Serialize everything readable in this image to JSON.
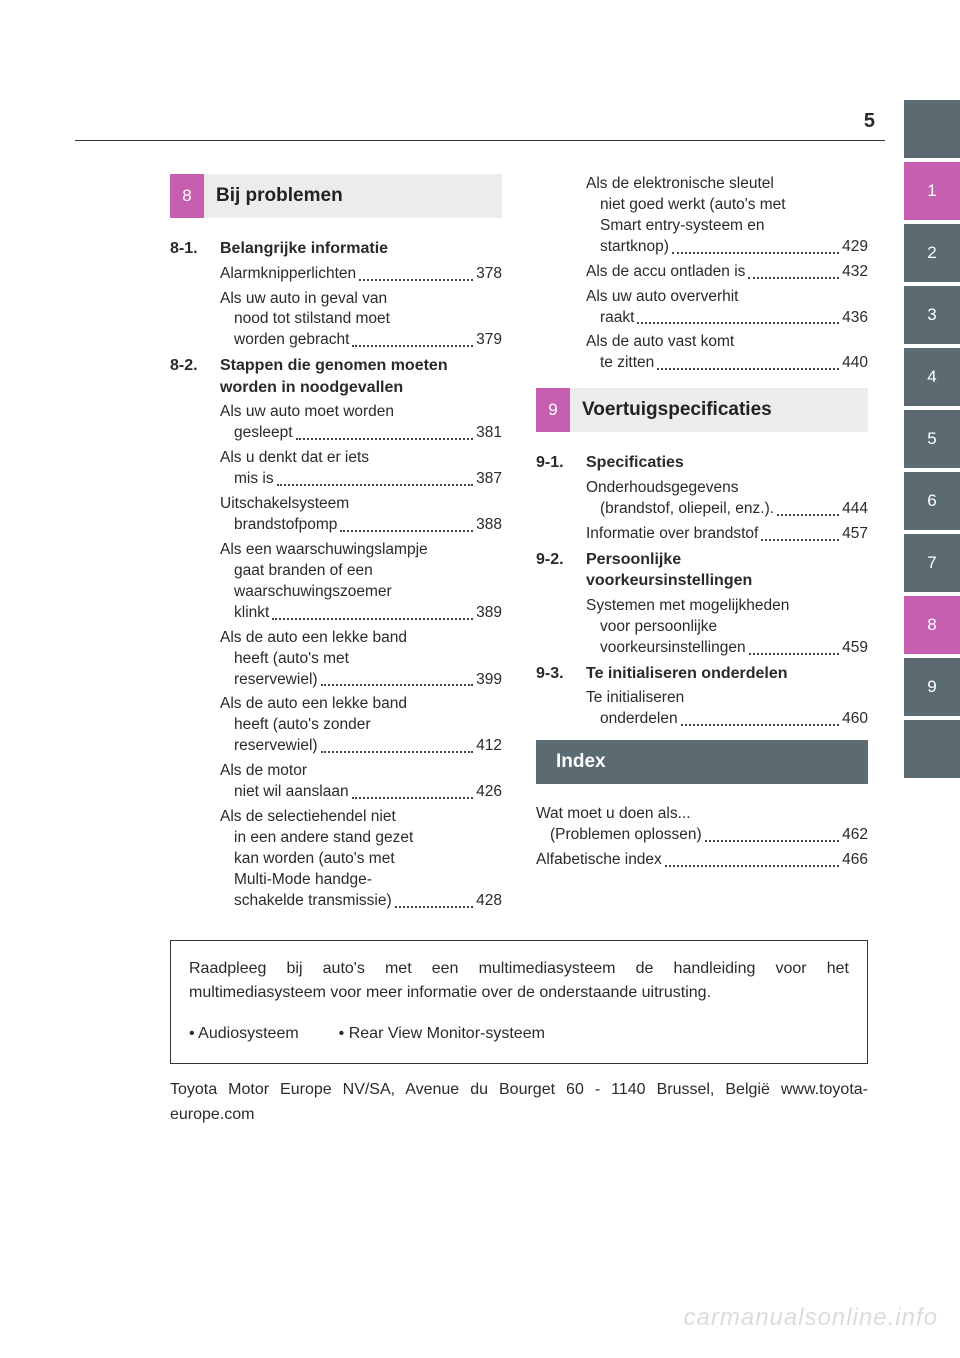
{
  "page_number": "5",
  "watermark": "carmanualsonline.info",
  "left": {
    "chapter": {
      "num": "8",
      "title": "Bij problemen",
      "accent": "#c65fb0"
    },
    "sections": [
      {
        "num": "8-1.",
        "title": "Belangrijke informatie",
        "entries": [
          {
            "lines": [
              "Alarmknipperlichten"
            ],
            "page": "378"
          },
          {
            "lines": [
              "Als uw auto in geval van",
              "nood tot stilstand moet",
              "worden gebracht"
            ],
            "page": "379"
          }
        ]
      },
      {
        "num": "8-2.",
        "title_lines": [
          "Stappen die genomen moeten",
          "worden in noodgevallen"
        ],
        "entries": [
          {
            "lines": [
              "Als uw auto moet worden",
              "gesleept"
            ],
            "page": "381"
          },
          {
            "lines": [
              "Als u denkt dat er iets",
              "mis is"
            ],
            "page": "387"
          },
          {
            "lines": [
              "Uitschakelsysteem",
              "brandstofpomp"
            ],
            "page": "388"
          },
          {
            "lines": [
              "Als een waarschuwingslampje",
              "gaat branden of een",
              "waarschuwingszoemer",
              "klinkt"
            ],
            "page": "389"
          },
          {
            "lines": [
              "Als de auto een lekke band",
              "heeft (auto's met",
              "reservewiel)"
            ],
            "page": "399"
          },
          {
            "lines": [
              "Als de auto een lekke band",
              "heeft (auto's zonder",
              "reservewiel)"
            ],
            "page": "412"
          },
          {
            "lines": [
              "Als de motor",
              "niet wil aanslaan"
            ],
            "page": "426"
          },
          {
            "lines": [
              "Als de selectiehendel niet",
              "in een andere stand gezet",
              "kan worden (auto's met",
              "Multi-Mode handge-",
              "schakelde transmissie)"
            ],
            "page": "428"
          }
        ]
      }
    ]
  },
  "right": {
    "top_entries": [
      {
        "lines": [
          "Als de elektronische sleutel",
          "niet goed werkt (auto's met",
          "Smart entry-systeem en",
          "startknop)"
        ],
        "page": "429"
      },
      {
        "lines": [
          "Als de accu ontladen is"
        ],
        "page": "432"
      },
      {
        "lines": [
          "Als uw auto oververhit",
          "raakt"
        ],
        "page": "436"
      },
      {
        "lines": [
          "Als de auto vast komt",
          "te zitten"
        ],
        "page": "440"
      }
    ],
    "chapter": {
      "num": "9",
      "title": "Voertuigspecificaties",
      "accent": "#c65fb0"
    },
    "sections": [
      {
        "num": "9-1.",
        "title": "Specificaties",
        "entries": [
          {
            "lines": [
              "Onderhoudsgegevens",
              "(brandstof, oliepeil, enz.)."
            ],
            "page": "444"
          },
          {
            "lines": [
              "Informatie over brandstof"
            ],
            "page": "457"
          }
        ]
      },
      {
        "num": "9-2.",
        "title_lines": [
          "Persoonlijke",
          "voorkeursinstellingen"
        ],
        "entries": [
          {
            "lines": [
              "Systemen met mogelijkheden",
              "voor persoonlijke",
              "voorkeursinstellingen"
            ],
            "page": "459"
          }
        ]
      },
      {
        "num": "9-3.",
        "title": "Te initialiseren onderdelen",
        "entries": [
          {
            "lines": [
              "Te initialiseren",
              "onderdelen"
            ],
            "page": "460"
          }
        ]
      }
    ],
    "index_bar": {
      "title": "Index"
    },
    "index_entries": [
      {
        "lines": [
          "Wat moet u doen als...",
          "(Problemen oplossen)"
        ],
        "page": "462"
      },
      {
        "lines": [
          "Alfabetische index"
        ],
        "page": "466"
      }
    ]
  },
  "footer": {
    "box_text": "Raadpleeg bij auto's met een multimediasysteem de handleiding voor het multimediasysteem voor meer informatie over de onderstaande uitrusting.",
    "bullets": [
      "Audiosysteem",
      "Rear View Monitor-systeem"
    ],
    "line": "Toyota Motor Europe NV/SA, Avenue du Bourget 60 - 1140 Brussel, België www.toyota-europe.com"
  },
  "tabs": [
    {
      "label": "",
      "kind": "blank"
    },
    {
      "label": "1",
      "kind": "pink"
    },
    {
      "label": "2",
      "kind": "gray"
    },
    {
      "label": "3",
      "kind": "gray"
    },
    {
      "label": "4",
      "kind": "gray"
    },
    {
      "label": "5",
      "kind": "gray"
    },
    {
      "label": "6",
      "kind": "gray"
    },
    {
      "label": "7",
      "kind": "gray"
    },
    {
      "label": "8",
      "kind": "pink"
    },
    {
      "label": "9",
      "kind": "gray"
    },
    {
      "label": "",
      "kind": "blank"
    }
  ]
}
